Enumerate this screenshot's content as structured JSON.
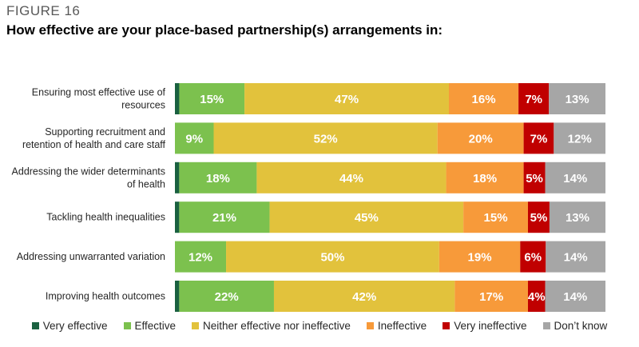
{
  "figure_label": "FIGURE 16",
  "title": "How effective are your place-based partnership(s) arrangements in:",
  "chart_data": {
    "type": "bar",
    "orientation": "horizontal",
    "stacked": true,
    "percent_stacked": true,
    "legend_position": "bottom",
    "grid": false,
    "categories": [
      [
        "Ensuring most effective use of",
        "resources"
      ],
      [
        "Supporting recruitment and",
        "retention of health and care staff"
      ],
      [
        "Addressing the wider determinants",
        "of health"
      ],
      [
        "Tackling health inequalities"
      ],
      [
        "Addressing unwarranted variation"
      ],
      [
        "Improving health outcomes"
      ]
    ],
    "series": [
      {
        "name": "Very effective",
        "color": "#1a6140",
        "values": [
          1,
          0,
          1,
          1,
          0,
          1
        ],
        "labels": [
          "",
          "",
          "",
          "",
          "",
          ""
        ]
      },
      {
        "name": "Effective",
        "color": "#7cc14e",
        "values": [
          15,
          9,
          18,
          21,
          12,
          22
        ],
        "labels": [
          "15%",
          "9%",
          "18%",
          "21%",
          "12%",
          "22%"
        ]
      },
      {
        "name": "Neither effective nor ineffective",
        "color": "#e2c23c",
        "values": [
          47,
          52,
          44,
          45,
          50,
          42
        ],
        "labels": [
          "47%",
          "52%",
          "44%",
          "45%",
          "50%",
          "42%"
        ]
      },
      {
        "name": "Ineffective",
        "color": "#f79a3a",
        "values": [
          16,
          20,
          18,
          15,
          19,
          17
        ],
        "labels": [
          "16%",
          "20%",
          "18%",
          "15%",
          "19%",
          "17%"
        ]
      },
      {
        "name": "Very ineffective",
        "color": "#c00000",
        "values": [
          7,
          7,
          5,
          5,
          6,
          4
        ],
        "labels": [
          "7%",
          "7%",
          "5%",
          "5%",
          "6%",
          "4%"
        ]
      },
      {
        "name": "Don’t know",
        "color": "#a6a6a6",
        "values": [
          13,
          12,
          14,
          13,
          14,
          14
        ],
        "labels": [
          "13%",
          "12%",
          "14%",
          "13%",
          "14%",
          "14%"
        ]
      }
    ]
  }
}
